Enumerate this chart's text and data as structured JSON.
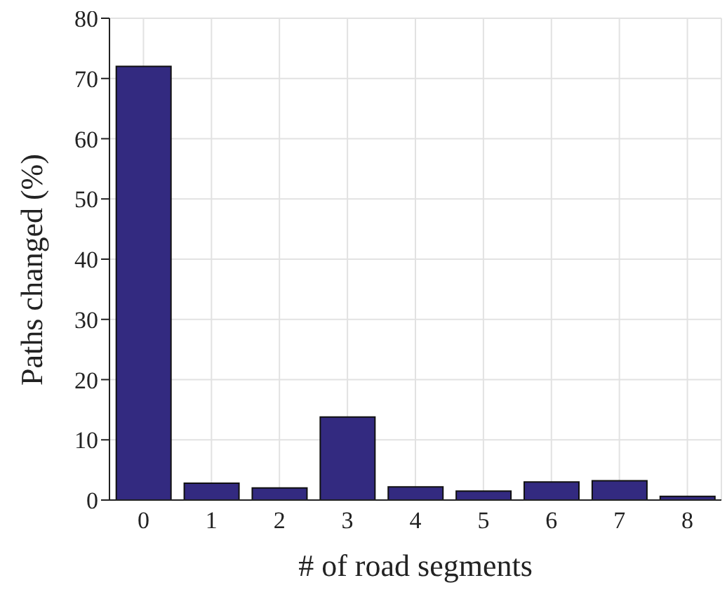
{
  "chart_data": {
    "type": "bar",
    "xlabel": "# of road segments",
    "ylabel": "Paths changed (%)",
    "categories": [
      "0",
      "1",
      "2",
      "3",
      "4",
      "5",
      "6",
      "7",
      "8"
    ],
    "values": [
      72,
      2.8,
      2.0,
      13.8,
      2.2,
      1.5,
      3.0,
      3.2,
      0.6
    ],
    "color": "#332a80",
    "ylim": [
      0,
      80
    ],
    "yticks": [
      0,
      10,
      20,
      30,
      40,
      50,
      60,
      70,
      80
    ],
    "grid": true
  }
}
